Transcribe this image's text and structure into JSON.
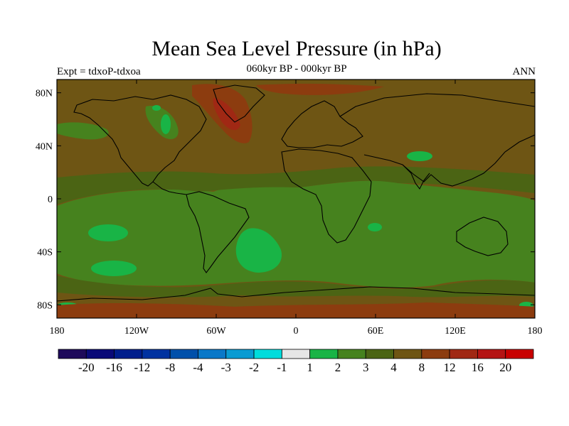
{
  "title": "Mean Sea Level Pressure (in hPa)",
  "subtitle": "060kyr BP - 000kyr BP",
  "left_string": "Expt = tdxoP-tdxoa",
  "right_string": "ANN",
  "map": {
    "projection": "cylindrical-equidistant",
    "lon_range": [
      -180,
      180
    ],
    "lat_range": [
      -90,
      90
    ],
    "lat_ticks": [
      {
        "value": 80,
        "label": "80N"
      },
      {
        "value": 40,
        "label": "40N"
      },
      {
        "value": 0,
        "label": "0"
      },
      {
        "value": -40,
        "label": "40S"
      },
      {
        "value": -80,
        "label": "80S"
      }
    ],
    "lon_ticks": [
      {
        "value": -180,
        "label": "180"
      },
      {
        "value": -120,
        "label": "120W"
      },
      {
        "value": -60,
        "label": "60W"
      },
      {
        "value": 0,
        "label": "0"
      },
      {
        "value": 60,
        "label": "60E"
      },
      {
        "value": 120,
        "label": "120E"
      },
      {
        "value": 180,
        "label": "180"
      }
    ]
  },
  "colorbar": {
    "colors": [
      "#1e0a5a",
      "#0a0a78",
      "#001e8c",
      "#0032a0",
      "#0050aa",
      "#0a78c8",
      "#0a9bd2",
      "#00dcdc",
      "#e6e6e6",
      "#19b446",
      "#46821e",
      "#4b6414",
      "#6e5514",
      "#8c3c0f",
      "#a02814",
      "#b41414",
      "#c80000"
    ],
    "labels": [
      "-20",
      "-16",
      "-12",
      "-8",
      "-4",
      "-3",
      "-2",
      "-1",
      "1",
      "2",
      "3",
      "4",
      "8",
      "12",
      "16",
      "20"
    ]
  },
  "colors": {
    "field_base": "#6e5514",
    "level_3": "#46821e",
    "level_4": "#4b6414",
    "level_2": "#19b446",
    "level_12": "#8c3c0f",
    "level_16": "#a02814"
  }
}
